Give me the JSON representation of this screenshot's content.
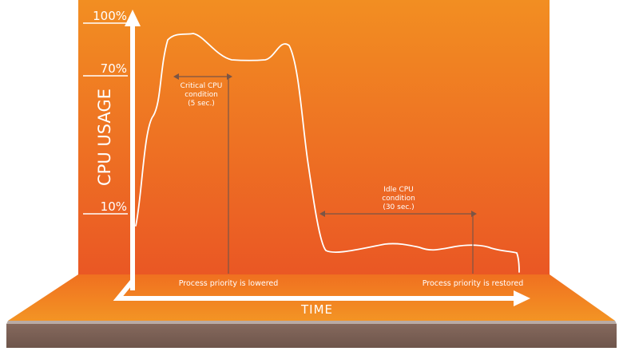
{
  "y_axis": {
    "title": "CPU USAGE",
    "ticks": [
      {
        "label": "100%",
        "value": 100
      },
      {
        "label": "70%",
        "value": 70
      },
      {
        "label": "10%",
        "value": 10
      }
    ]
  },
  "x_axis": {
    "title": "TIME"
  },
  "annotations": {
    "critical": {
      "lines": [
        "Critical CPU",
        "condition",
        "(5 sec.)"
      ]
    },
    "idle": {
      "lines": [
        "Idle CPU",
        "condition",
        "(30 sec.)"
      ]
    },
    "lowered": {
      "label": "Process priority is lowered"
    },
    "restored": {
      "label": "Process priority is restored"
    }
  },
  "colors": {
    "wall_top": "#f08a24",
    "wall_bottom": "#ea5a24",
    "floor": "#ef7a22",
    "slab_side": "#7b6258",
    "slab_top": "#b6a8a2",
    "line": "#ffffff",
    "marker": "#7a5546"
  }
}
